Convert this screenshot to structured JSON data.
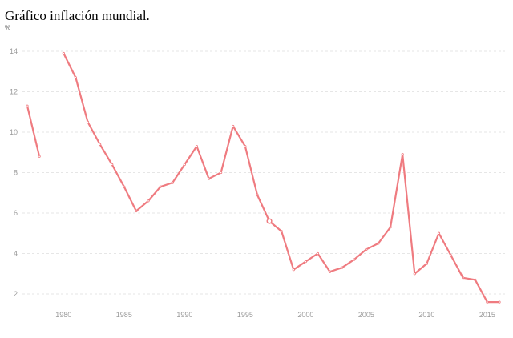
{
  "title": "Gráfico inflación mundial.",
  "chart_data": {
    "type": "line",
    "title": "Gráfico inflación mundial.",
    "ylabel": "%",
    "xlabel": "",
    "xlim": [
      1977,
      2016
    ],
    "ylim": [
      2,
      14
    ],
    "x_ticks": [
      1980,
      1985,
      1990,
      1995,
      2000,
      2005,
      2010,
      2015
    ],
    "y_ticks": [
      2,
      4,
      6,
      8,
      10,
      12,
      14
    ],
    "grid": true,
    "legend": "none",
    "series_color": "#ef7b80",
    "highlighted_point": {
      "x": 1997,
      "y": 5.6
    },
    "series": [
      {
        "name": "",
        "segments": [
          [
            [
              1977,
              11.3
            ],
            [
              1978,
              8.8
            ]
          ],
          [
            [
              1980,
              13.9
            ],
            [
              1981,
              12.7
            ],
            [
              1982,
              10.5
            ],
            [
              1983,
              9.4
            ],
            [
              1984,
              8.4
            ],
            [
              1985,
              7.3
            ],
            [
              1986,
              6.1
            ],
            [
              1987,
              6.6
            ],
            [
              1988,
              7.3
            ],
            [
              1989,
              7.5
            ],
            [
              1990,
              8.4
            ],
            [
              1991,
              9.3
            ],
            [
              1992,
              7.7
            ],
            [
              1993,
              8.0
            ],
            [
              1994,
              10.3
            ],
            [
              1995,
              9.3
            ],
            [
              1996,
              6.9
            ],
            [
              1997,
              5.6
            ],
            [
              1998,
              5.1
            ],
            [
              1999,
              3.2
            ],
            [
              2000,
              3.6
            ],
            [
              2001,
              4.0
            ],
            [
              2002,
              3.1
            ],
            [
              2003,
              3.3
            ],
            [
              2004,
              3.7
            ],
            [
              2005,
              4.2
            ],
            [
              2006,
              4.5
            ],
            [
              2007,
              5.3
            ],
            [
              2008,
              8.9
            ],
            [
              2009,
              3.0
            ],
            [
              2010,
              3.5
            ],
            [
              2011,
              5.0
            ],
            [
              2012,
              3.9
            ],
            [
              2013,
              2.8
            ],
            [
              2014,
              2.7
            ],
            [
              2015,
              1.6
            ],
            [
              2016,
              1.6
            ]
          ]
        ]
      }
    ]
  }
}
